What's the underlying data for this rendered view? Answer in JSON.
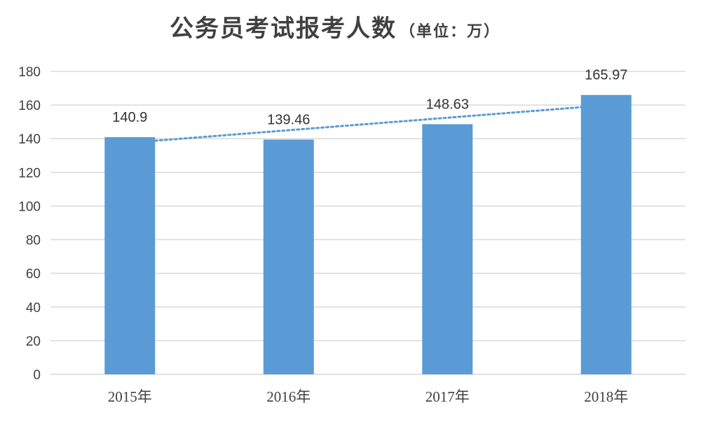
{
  "chart_data": {
    "type": "bar",
    "title": "公务员考试报考人数",
    "subtitle": "（单位：万）",
    "categories": [
      "2015年",
      "2016年",
      "2017年",
      "2018年"
    ],
    "values": [
      140.9,
      139.46,
      148.63,
      165.97
    ],
    "data_labels": [
      "140.9",
      "139.46",
      "148.63",
      "165.97"
    ],
    "ylim": [
      0,
      180
    ],
    "y_ticks": [
      "0",
      "20",
      "40",
      "60",
      "80",
      "100",
      "120",
      "140",
      "160",
      "180"
    ],
    "grid": true,
    "legend": "none",
    "trendline": "linear-dotted",
    "colors": {
      "bar": "#5b9bd5",
      "trendline": "#5b9bd5",
      "grid": "#d9d9d9",
      "text": "#404040"
    }
  }
}
